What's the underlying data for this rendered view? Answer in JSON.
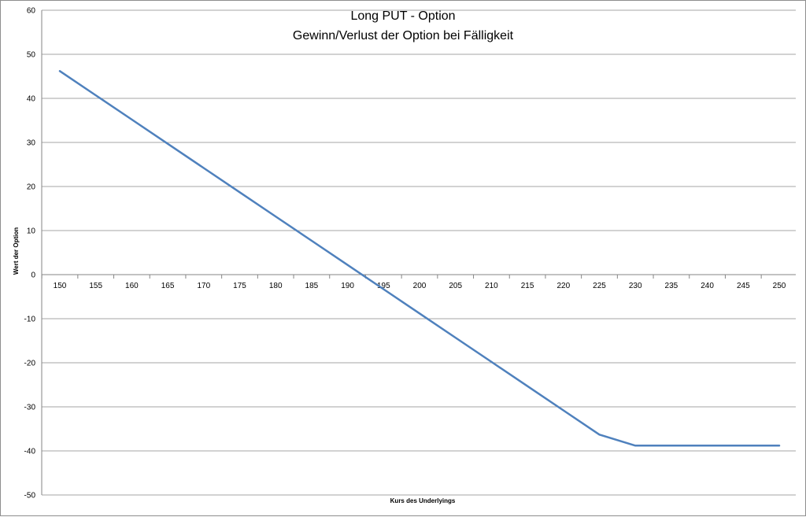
{
  "chart_data": {
    "type": "line",
    "title": "Long PUT - Option",
    "subtitle": "Gewinn/Verlust der Option bei Fälligkeit",
    "xlabel": "Kurs des Underlyings",
    "ylabel": "Wert der Option",
    "categories": [
      "150",
      "155",
      "160",
      "165",
      "170",
      "175",
      "180",
      "185",
      "190",
      "195",
      "200",
      "205",
      "210",
      "215",
      "220",
      "225",
      "230",
      "235",
      "240",
      "245",
      "250"
    ],
    "yticks": [
      "60",
      "50",
      "40",
      "30",
      "20",
      "10",
      "0",
      "-10",
      "-20",
      "-30",
      "-40",
      "-50"
    ],
    "ylim": [
      -50,
      60
    ],
    "grid": true,
    "legend": "none",
    "series": [
      {
        "values": [
          46.2,
          40.7,
          35.2,
          29.7,
          24.2,
          18.7,
          13.2,
          7.7,
          2.2,
          -3.3,
          -8.8,
          -14.3,
          -19.8,
          -25.3,
          -30.8,
          -36.3,
          -38.8,
          -38.8,
          -38.8,
          -38.8,
          -38.8
        ],
        "color": "#4f81bd"
      }
    ]
  }
}
